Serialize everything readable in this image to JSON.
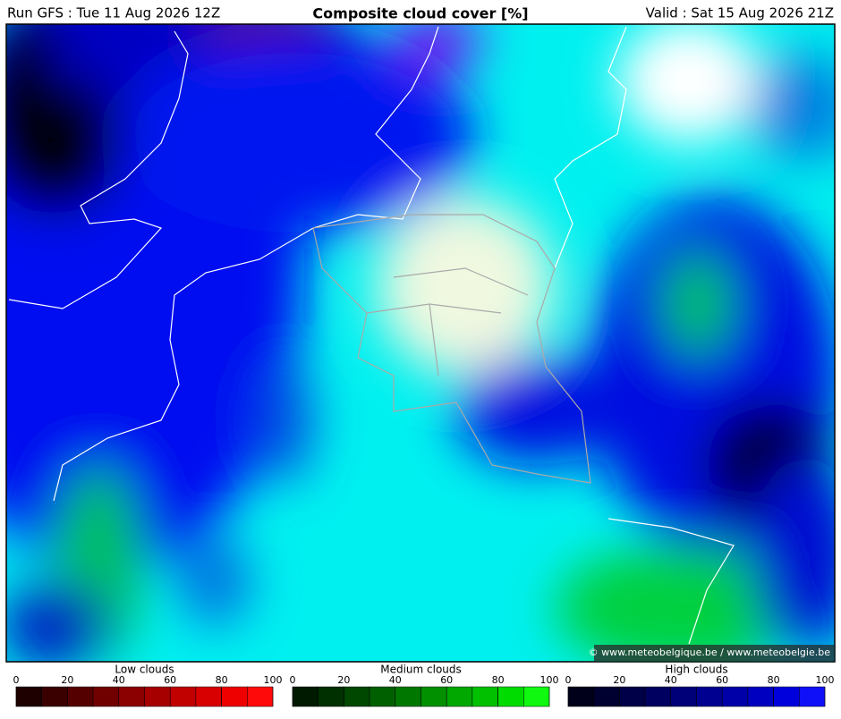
{
  "header": {
    "run": "Run GFS : Tue 11 Aug 2026 12Z",
    "title": "Composite cloud cover [%]",
    "valid": "Valid : Sat 15 Aug 2026 21Z"
  },
  "credit": "© www.meteobelgique.be / www.meteobelgie.be",
  "legends": [
    {
      "title": "Low clouds",
      "ticks": [
        0,
        20,
        40,
        60,
        80,
        100
      ],
      "colors": [
        "#1e0000",
        "#3a0000",
        "#550000",
        "#700000",
        "#8b0000",
        "#a60000",
        "#c10000",
        "#d80000",
        "#ee0000",
        "#ff0a0a"
      ]
    },
    {
      "title": "Medium clouds",
      "ticks": [
        0,
        20,
        40,
        60,
        80,
        100
      ],
      "colors": [
        "#001a00",
        "#003000",
        "#004800",
        "#006000",
        "#007800",
        "#009000",
        "#00a800",
        "#00c000",
        "#00dc00",
        "#10f810"
      ]
    },
    {
      "title": "High clouds",
      "ticks": [
        0,
        20,
        40,
        60,
        80,
        100
      ],
      "colors": [
        "#00001a",
        "#000030",
        "#000048",
        "#000060",
        "#000078",
        "#000090",
        "#0000a8",
        "#0000c0",
        "#0000dc",
        "#1010f8"
      ]
    }
  ]
}
